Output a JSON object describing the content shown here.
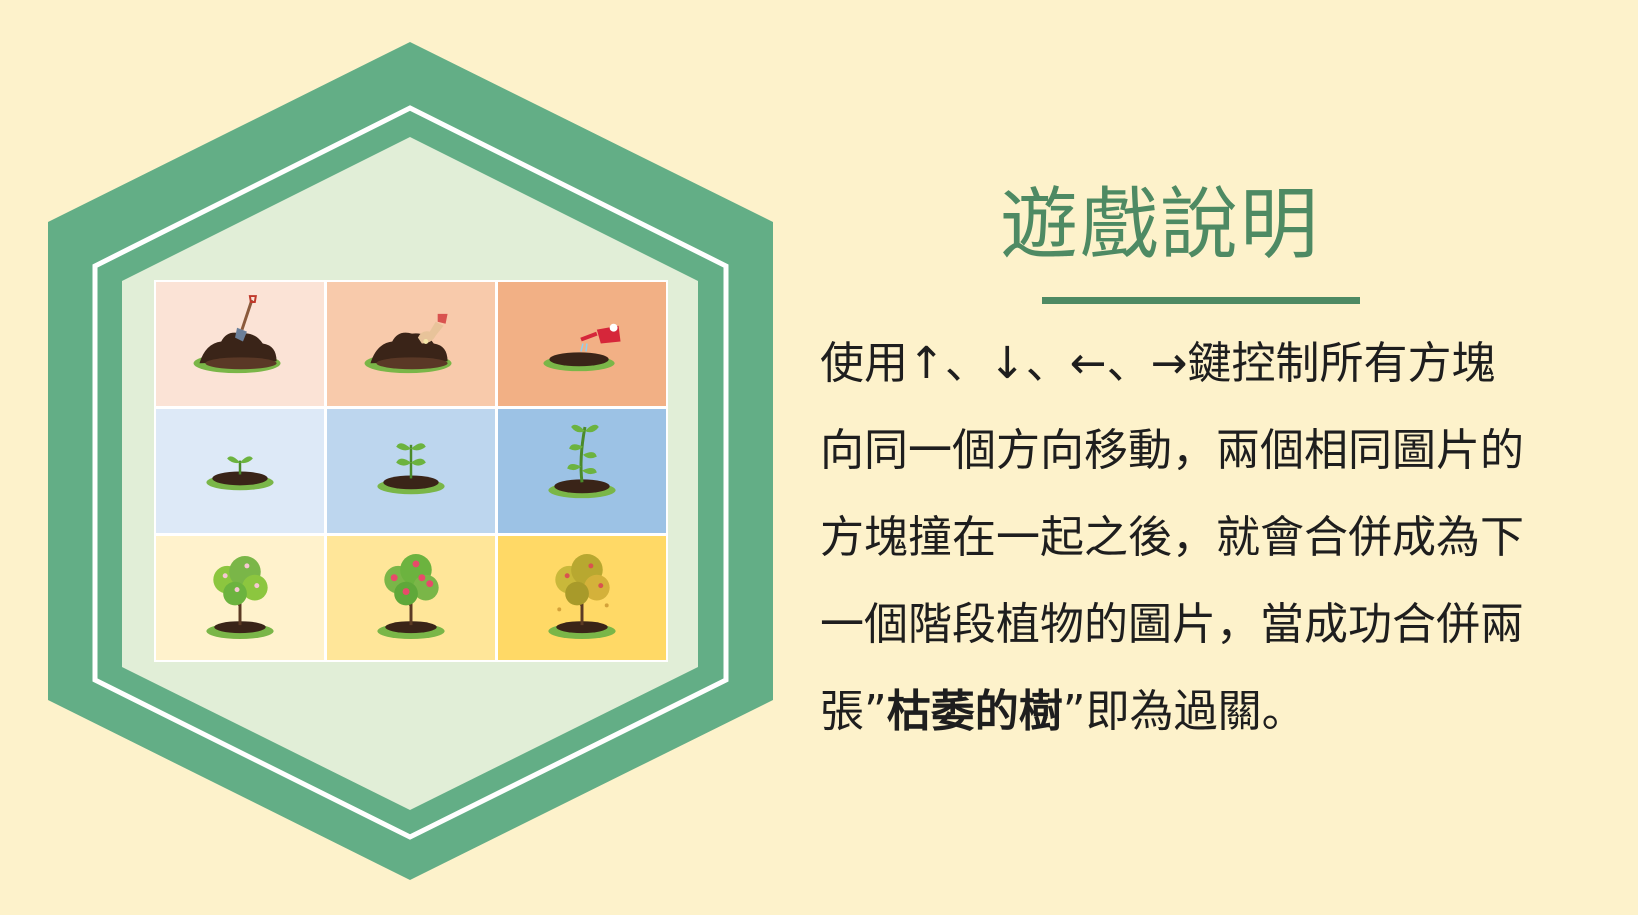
{
  "slide": {
    "title": "遊戲說明",
    "instructions": {
      "line1_prefix": "使用",
      "arrow_up": "↑",
      "sep1": "、",
      "arrow_down": "↓",
      "sep2": "、",
      "arrow_left": "←",
      "sep3": "、",
      "arrow_right": "→",
      "line1_suffix": "鍵控制所有方塊",
      "line2": "向同一個方向移動，兩個相同圖片的",
      "line3": "方塊撞在一起之後，就會合併成為下",
      "line4": "一個階段植物的圖片，當成功合併兩",
      "line5_prefix": "張”",
      "line5_bold": "枯萎的樹",
      "line5_suffix": "”即為過關。"
    }
  },
  "tiles": [
    {
      "stage": "shovel-in-soil",
      "bg": "#fbe3d6"
    },
    {
      "stage": "seed-in-soil",
      "bg": "#f8caab"
    },
    {
      "stage": "watering-can-over-soil",
      "bg": "#f2b085"
    },
    {
      "stage": "small-sprout",
      "bg": "#dde9f7"
    },
    {
      "stage": "medium-sprout",
      "bg": "#bdd6ee"
    },
    {
      "stage": "tall-sapling",
      "bg": "#9cc2e5"
    },
    {
      "stage": "flowering-bush",
      "bg": "#fff2cc"
    },
    {
      "stage": "fruit-tree",
      "bg": "#ffe699"
    },
    {
      "stage": "withered-tree",
      "bg": "#ffd966"
    }
  ],
  "colors": {
    "background": "#fdf2cb",
    "hexagon_outer": "#63ae86",
    "hexagon_inner": "#e1eed7",
    "hexagon_line": "#ffffff",
    "title": "#4e8a63",
    "text": "#1e1e1e"
  }
}
